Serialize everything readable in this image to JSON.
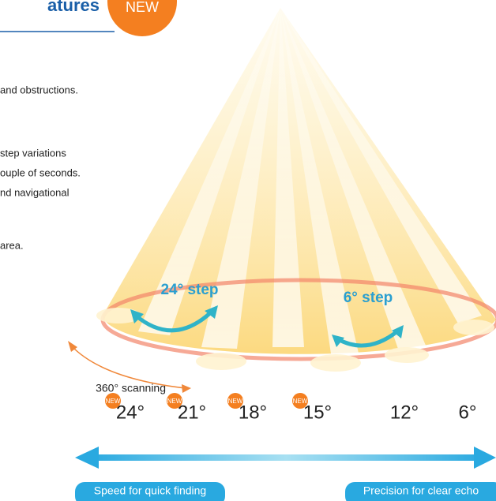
{
  "header": {
    "title": "atures",
    "badge": "NEW"
  },
  "text_lines": [
    "and obstructions.",
    "step variations",
    "ouple of seconds.",
    "nd navigational",
    "area."
  ],
  "diagram": {
    "wide_step": "24° step",
    "narrow_step": "6° step",
    "rotation": "360° scanning"
  },
  "steps": [
    {
      "label": "24°",
      "badge": "NEW"
    },
    {
      "label": "21°",
      "badge": "NEW"
    },
    {
      "label": "18°",
      "badge": "NEW"
    },
    {
      "label": "15°",
      "badge": "NEW"
    },
    {
      "label": "12°"
    },
    {
      "label": "6°"
    }
  ],
  "scale": {
    "left": "Speed for quick finding",
    "right": "Precision for clear echo"
  }
}
